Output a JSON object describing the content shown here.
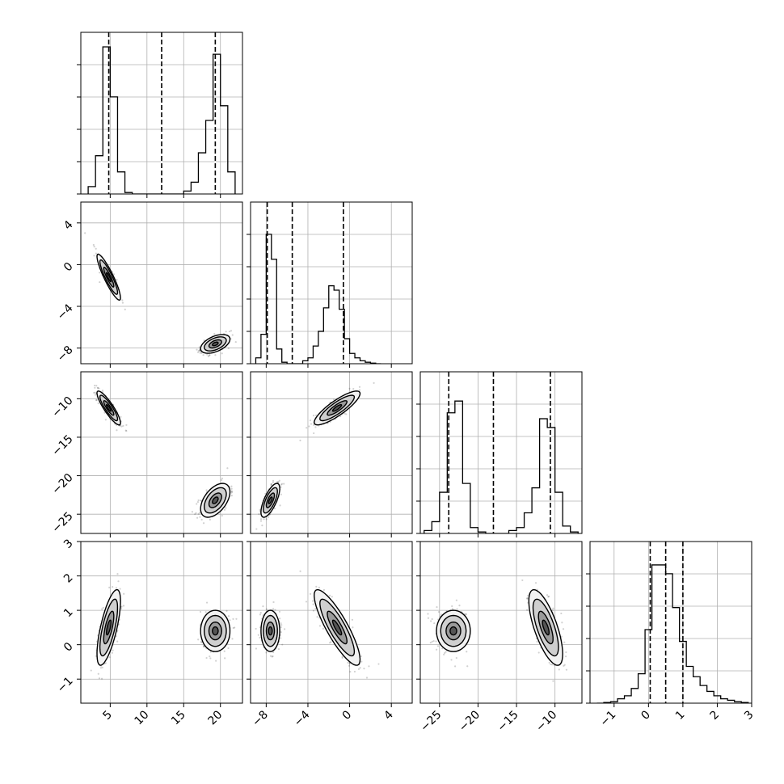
{
  "chart_data": {
    "type": "corner",
    "n_params": 4,
    "grid": true,
    "colors": {
      "hist": "#000000",
      "contour": "#000000",
      "points": "#000000",
      "grid": "#b0b0b0"
    },
    "ranges": [
      [
        1,
        23
      ],
      [
        -9.5,
        6
      ],
      [
        -27.5,
        -6.5
      ],
      [
        -1.7,
        3
      ]
    ],
    "ticks": {
      "x": [
        [
          5,
          10,
          15,
          20
        ],
        [
          -8,
          -4,
          0,
          4
        ],
        [
          -25,
          -20,
          -15,
          -10
        ],
        [
          -1,
          0,
          1,
          2,
          3
        ]
      ],
      "y": [
        null,
        [
          4,
          0,
          -4,
          -8
        ],
        [
          -10,
          -15,
          -20,
          -25
        ],
        [
          3,
          2,
          1,
          0,
          -1
        ]
      ]
    },
    "tick_labels": {
      "x": [
        [
          "5",
          "10",
          "15",
          "20"
        ],
        [
          "−8",
          "−4",
          "0",
          "4"
        ],
        [
          "−25",
          "−20",
          "−15",
          "−10"
        ],
        [
          "−1",
          "0",
          "1",
          "2",
          "3"
        ]
      ],
      "y": [
        [],
        [
          "4",
          "0",
          "−4",
          "−8"
        ],
        [
          "−10",
          "−15",
          "−20",
          "−25"
        ],
        [
          "3",
          "2",
          "1",
          "0",
          "−1"
        ]
      ]
    },
    "quantiles": [
      [
        4.8,
        12.0,
        19.3
      ],
      [
        -7.9,
        -5.5,
        -0.6
      ],
      [
        -23.8,
        -18.0,
        -10.6
      ],
      [
        0.05,
        0.5,
        1.0
      ]
    ],
    "marginals": [
      {
        "edges": [
          2,
          3,
          4,
          5,
          6,
          7,
          8,
          9,
          10,
          11,
          12,
          13,
          14,
          15,
          16,
          17,
          18,
          19,
          20,
          21,
          22
        ],
        "counts": [
          0.05,
          0.26,
          1.0,
          0.66,
          0.15,
          0.01,
          0,
          0,
          0,
          0,
          0,
          0,
          0,
          0.02,
          0.08,
          0.28,
          0.5,
          0.95,
          0.6,
          0.15
        ]
      },
      {
        "edges": [
          -9.0,
          -8.5,
          -8.0,
          -7.5,
          -7.0,
          -6.5,
          -6.0,
          -5.5,
          -5.0,
          -4.5,
          -4.0,
          -3.5,
          -3.0,
          -2.5,
          -2.0,
          -1.5,
          -1.0,
          -0.5,
          0.0,
          0.5,
          1.0,
          1.5,
          2.0,
          2.5,
          3.0
        ],
        "counts": [
          0.04,
          0.2,
          0.88,
          0.71,
          0.1,
          0.01,
          0,
          0,
          0,
          0.02,
          0.04,
          0.12,
          0.22,
          0.38,
          0.53,
          0.5,
          0.37,
          0.17,
          0.07,
          0.04,
          0.02,
          0.01,
          0.004,
          0
        ]
      },
      {
        "edges": [
          -27,
          -26,
          -25,
          -24,
          -23,
          -22,
          -21,
          -20,
          -19,
          -18,
          -17,
          -16,
          -15,
          -14,
          -13,
          -12,
          -11,
          -10,
          -9,
          -8,
          -7
        ],
        "counts": [
          0.02,
          0.08,
          0.28,
          0.82,
          0.9,
          0.34,
          0.04,
          0.01,
          0,
          0,
          0,
          0.02,
          0.04,
          0.14,
          0.31,
          0.78,
          0.72,
          0.28,
          0.05,
          0.01
        ]
      },
      {
        "edges": [
          -1.5,
          -1.3,
          -1.1,
          -0.9,
          -0.7,
          -0.5,
          -0.3,
          -0.1,
          0.1,
          0.3,
          0.5,
          0.7,
          0.9,
          1.1,
          1.3,
          1.5,
          1.7,
          1.9,
          2.1,
          2.3,
          2.5,
          2.7,
          2.9
        ],
        "counts": [
          0,
          0.005,
          0.01,
          0.03,
          0.05,
          0.1,
          0.2,
          0.5,
          0.94,
          0.94,
          0.88,
          0.65,
          0.42,
          0.25,
          0.18,
          0.12,
          0.08,
          0.05,
          0.03,
          0.02,
          0.01,
          0.005
        ]
      }
    ],
    "clusters": [
      {
        "mean": [
          4.8,
          -1.2,
          -11.2,
          0.5
        ],
        "std": [
          0.8,
          1.1,
          1.1,
          0.55
        ]
      },
      {
        "mean": [
          19.3,
          -7.6,
          -23.2,
          0.4
        ],
        "std": [
          1.0,
          0.45,
          1.1,
          0.3
        ]
      }
    ],
    "correlations": {
      "1-0": [
        -0.9,
        0.5
      ],
      "2-0": [
        -0.88,
        0.5
      ],
      "2-1": [
        0.85,
        0.7
      ],
      "3-0": [
        0.7,
        0.0
      ],
      "3-1": [
        -0.85,
        0.0
      ],
      "3-2": [
        -0.7,
        0.0
      ]
    },
    "contour_levels": [
      0.39,
      0.86,
      1.5,
      2.0
    ]
  }
}
